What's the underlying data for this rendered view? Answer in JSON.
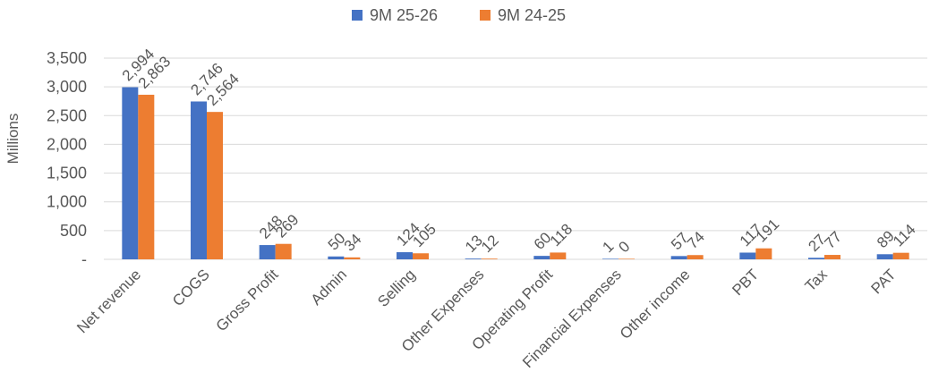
{
  "chart_data": {
    "type": "bar",
    "title": "",
    "xlabel": "",
    "ylabel": "Millions",
    "ylim": [
      0,
      3500
    ],
    "yticks": [
      0,
      500,
      1000,
      1500,
      2000,
      2500,
      3000,
      3500
    ],
    "ytick_labels": [
      "-",
      "500",
      "1,000",
      "1,500",
      "2,000",
      "2,500",
      "3,000",
      "3,500"
    ],
    "grid": true,
    "legend_position": "top",
    "categories": [
      "Net revenue",
      "COGS",
      "Gross Profit",
      "Admin",
      "Selling",
      "Other Expenses",
      "Operating Profit",
      "Financial Expenses",
      "Other income",
      "PBT",
      "Tax",
      "PAT"
    ],
    "series": [
      {
        "name": "9M 25-26",
        "color": "#4472C4",
        "values": [
          2994,
          2746,
          248,
          50,
          124,
          13,
          60,
          1,
          57,
          117,
          27,
          89
        ],
        "labels": [
          "2,994",
          "2,746",
          "248",
          "50",
          "124",
          "13",
          "60",
          "1",
          "57",
          "117",
          "27",
          "89"
        ]
      },
      {
        "name": "9M 24-25",
        "color": "#ED7D31",
        "values": [
          2863,
          2564,
          269,
          34,
          105,
          12,
          118,
          0,
          74,
          191,
          77,
          114
        ],
        "labels": [
          "2,863",
          "2,564",
          "269",
          "34",
          "105",
          "12",
          "118",
          "0",
          "74",
          "191",
          "77",
          "114"
        ]
      }
    ]
  }
}
